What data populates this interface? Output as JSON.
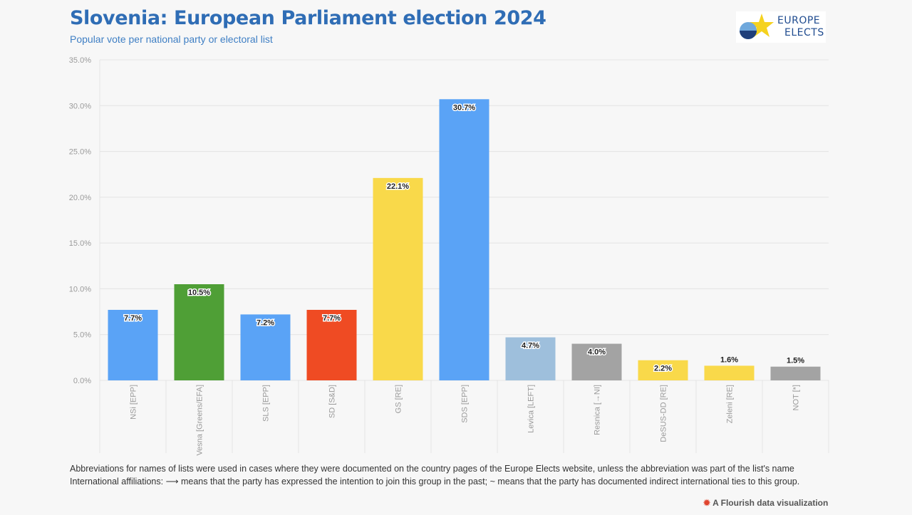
{
  "title": "Slovenia: European Parliament election 2024",
  "subtitle": "Popular vote per national party or electoral list",
  "logo": {
    "line1": "EUROPE",
    "line2": "ELECTS"
  },
  "footnotes": [
    "Abbreviations for names of lists were used in cases where they were documented on the country pages of the Europe Elects website, unless the abbreviation was part of the list's name",
    "International affiliations: ⟶ means that the party has expressed the intention to join this group in the past; ~ means that the party has documented indirect international ties to this group."
  ],
  "credit": "A Flourish data visualization",
  "chart_data": {
    "type": "bar",
    "ylim": [
      0,
      35
    ],
    "yticks": [
      "0.0%",
      "5.0%",
      "10.0%",
      "15.0%",
      "20.0%",
      "25.0%",
      "30.0%",
      "35.0%"
    ],
    "grid": true,
    "categories": [
      "NSi [EPP]",
      "Vesna [Greens/EFA]",
      "SLS [EPP]",
      "SD [S&D]",
      "GS [RE]",
      "SDS [EPP]",
      "Levica [LEFT]",
      "Resnica [→NI]",
      "DeSUS-DD [RE]",
      "Zeleni [RE]",
      "NOT [*]"
    ],
    "values": [
      7.7,
      10.5,
      7.2,
      7.7,
      22.1,
      30.7,
      4.7,
      4.0,
      2.2,
      1.6,
      1.5
    ],
    "labels": [
      "7.7%",
      "10.5%",
      "7.2%",
      "7.7%",
      "22.1%",
      "30.7%",
      "4.7%",
      "4.0%",
      "2.2%",
      "1.6%",
      "1.5%"
    ],
    "colors": [
      "#5aa3f6",
      "#4f9f36",
      "#5aa3f6",
      "#ef4b23",
      "#f9d94a",
      "#5aa3f6",
      "#9ebfdc",
      "#a3a3a3",
      "#f9d94a",
      "#f9d94a",
      "#a3a3a3"
    ]
  }
}
